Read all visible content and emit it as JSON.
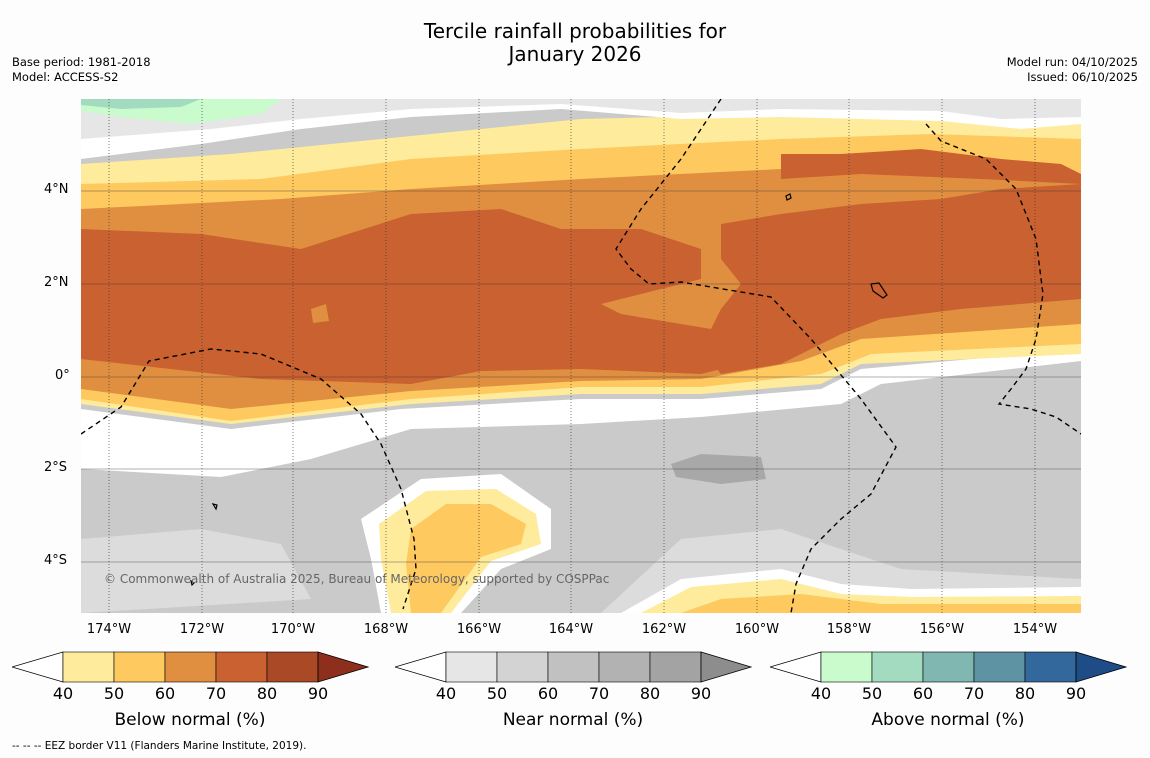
{
  "title": {
    "line1": "Tercile rainfall probabilities for",
    "line2": "January 2026"
  },
  "meta_left": {
    "base_period": "Base period: 1981-2018",
    "model": "Model: ACCESS-S2"
  },
  "meta_right": {
    "model_run": "Model run: 04/10/2025",
    "issued": "Issued: 06/10/2025"
  },
  "map": {
    "copyright": "© Commonwealth of Australia 2025, Bureau of Meteorology, supported by COSPPac",
    "lat_labels": [
      "4°N",
      "2°N",
      "0°",
      "2°S",
      "4°S"
    ],
    "lon_labels": [
      "174°W",
      "172°W",
      "170°W",
      "168°W",
      "166°W",
      "164°W",
      "162°W",
      "160°W",
      "158°W",
      "156°W",
      "154°W"
    ],
    "lat_range": [
      -5.2,
      5.9
    ],
    "lon_range": [
      -174.6,
      -153.1
    ]
  },
  "colorbars": [
    {
      "title": "Below normal (%)",
      "ticks": [
        "40",
        "50",
        "60",
        "70",
        "80",
        "90"
      ],
      "colors": [
        "#ffffff",
        "#feeb9b",
        "#fec95f",
        "#e08f41",
        "#c96130",
        "#aa4925",
        "#8e2f1d"
      ]
    },
    {
      "title": "Near normal (%)",
      "ticks": [
        "40",
        "50",
        "60",
        "70",
        "80",
        "90"
      ],
      "colors": [
        "#ffffff",
        "#e6e6e6",
        "#d3d3d3",
        "#c1c1c1",
        "#b2b2b2",
        "#a3a3a3",
        "#8d8d8d"
      ]
    },
    {
      "title": "Above normal (%)",
      "ticks": [
        "40",
        "50",
        "60",
        "70",
        "80",
        "90"
      ],
      "colors": [
        "#ffffff",
        "#c9fbcd",
        "#a3dbc1",
        "#80b7b1",
        "#5d93a2",
        "#32689b",
        "#1d4c87"
      ]
    }
  ],
  "footnote": "-- -- -- EEZ border V11 (Flanders Marine Institute, 2019)."
}
